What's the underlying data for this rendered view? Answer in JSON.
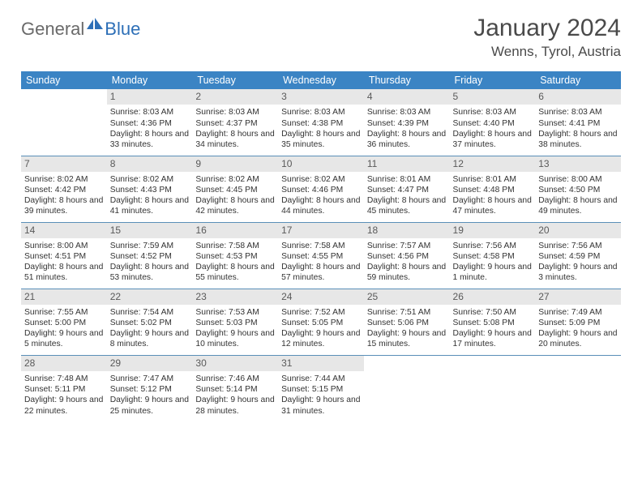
{
  "logo": {
    "word1": "General",
    "word2": "Blue",
    "icon_color": "#2d6fb7",
    "text1_color": "#6a6a6a"
  },
  "title": "January 2024",
  "location": "Wenns, Tyrol, Austria",
  "header_bg": "#3b84c4",
  "daynum_bg": "#e7e7e7",
  "row_border": "#5a8fb8",
  "weekdays": [
    "Sunday",
    "Monday",
    "Tuesday",
    "Wednesday",
    "Thursday",
    "Friday",
    "Saturday"
  ],
  "weeks": [
    [
      {
        "n": "",
        "sr": "",
        "ss": "",
        "dl": ""
      },
      {
        "n": "1",
        "sr": "8:03 AM",
        "ss": "4:36 PM",
        "dl": "8 hours and 33 minutes."
      },
      {
        "n": "2",
        "sr": "8:03 AM",
        "ss": "4:37 PM",
        "dl": "8 hours and 34 minutes."
      },
      {
        "n": "3",
        "sr": "8:03 AM",
        "ss": "4:38 PM",
        "dl": "8 hours and 35 minutes."
      },
      {
        "n": "4",
        "sr": "8:03 AM",
        "ss": "4:39 PM",
        "dl": "8 hours and 36 minutes."
      },
      {
        "n": "5",
        "sr": "8:03 AM",
        "ss": "4:40 PM",
        "dl": "8 hours and 37 minutes."
      },
      {
        "n": "6",
        "sr": "8:03 AM",
        "ss": "4:41 PM",
        "dl": "8 hours and 38 minutes."
      }
    ],
    [
      {
        "n": "7",
        "sr": "8:02 AM",
        "ss": "4:42 PM",
        "dl": "8 hours and 39 minutes."
      },
      {
        "n": "8",
        "sr": "8:02 AM",
        "ss": "4:43 PM",
        "dl": "8 hours and 41 minutes."
      },
      {
        "n": "9",
        "sr": "8:02 AM",
        "ss": "4:45 PM",
        "dl": "8 hours and 42 minutes."
      },
      {
        "n": "10",
        "sr": "8:02 AM",
        "ss": "4:46 PM",
        "dl": "8 hours and 44 minutes."
      },
      {
        "n": "11",
        "sr": "8:01 AM",
        "ss": "4:47 PM",
        "dl": "8 hours and 45 minutes."
      },
      {
        "n": "12",
        "sr": "8:01 AM",
        "ss": "4:48 PM",
        "dl": "8 hours and 47 minutes."
      },
      {
        "n": "13",
        "sr": "8:00 AM",
        "ss": "4:50 PM",
        "dl": "8 hours and 49 minutes."
      }
    ],
    [
      {
        "n": "14",
        "sr": "8:00 AM",
        "ss": "4:51 PM",
        "dl": "8 hours and 51 minutes."
      },
      {
        "n": "15",
        "sr": "7:59 AM",
        "ss": "4:52 PM",
        "dl": "8 hours and 53 minutes."
      },
      {
        "n": "16",
        "sr": "7:58 AM",
        "ss": "4:53 PM",
        "dl": "8 hours and 55 minutes."
      },
      {
        "n": "17",
        "sr": "7:58 AM",
        "ss": "4:55 PM",
        "dl": "8 hours and 57 minutes."
      },
      {
        "n": "18",
        "sr": "7:57 AM",
        "ss": "4:56 PM",
        "dl": "8 hours and 59 minutes."
      },
      {
        "n": "19",
        "sr": "7:56 AM",
        "ss": "4:58 PM",
        "dl": "9 hours and 1 minute."
      },
      {
        "n": "20",
        "sr": "7:56 AM",
        "ss": "4:59 PM",
        "dl": "9 hours and 3 minutes."
      }
    ],
    [
      {
        "n": "21",
        "sr": "7:55 AM",
        "ss": "5:00 PM",
        "dl": "9 hours and 5 minutes."
      },
      {
        "n": "22",
        "sr": "7:54 AM",
        "ss": "5:02 PM",
        "dl": "9 hours and 8 minutes."
      },
      {
        "n": "23",
        "sr": "7:53 AM",
        "ss": "5:03 PM",
        "dl": "9 hours and 10 minutes."
      },
      {
        "n": "24",
        "sr": "7:52 AM",
        "ss": "5:05 PM",
        "dl": "9 hours and 12 minutes."
      },
      {
        "n": "25",
        "sr": "7:51 AM",
        "ss": "5:06 PM",
        "dl": "9 hours and 15 minutes."
      },
      {
        "n": "26",
        "sr": "7:50 AM",
        "ss": "5:08 PM",
        "dl": "9 hours and 17 minutes."
      },
      {
        "n": "27",
        "sr": "7:49 AM",
        "ss": "5:09 PM",
        "dl": "9 hours and 20 minutes."
      }
    ],
    [
      {
        "n": "28",
        "sr": "7:48 AM",
        "ss": "5:11 PM",
        "dl": "9 hours and 22 minutes."
      },
      {
        "n": "29",
        "sr": "7:47 AM",
        "ss": "5:12 PM",
        "dl": "9 hours and 25 minutes."
      },
      {
        "n": "30",
        "sr": "7:46 AM",
        "ss": "5:14 PM",
        "dl": "9 hours and 28 minutes."
      },
      {
        "n": "31",
        "sr": "7:44 AM",
        "ss": "5:15 PM",
        "dl": "9 hours and 31 minutes."
      },
      {
        "n": "",
        "sr": "",
        "ss": "",
        "dl": ""
      },
      {
        "n": "",
        "sr": "",
        "ss": "",
        "dl": ""
      },
      {
        "n": "",
        "sr": "",
        "ss": "",
        "dl": ""
      }
    ]
  ]
}
